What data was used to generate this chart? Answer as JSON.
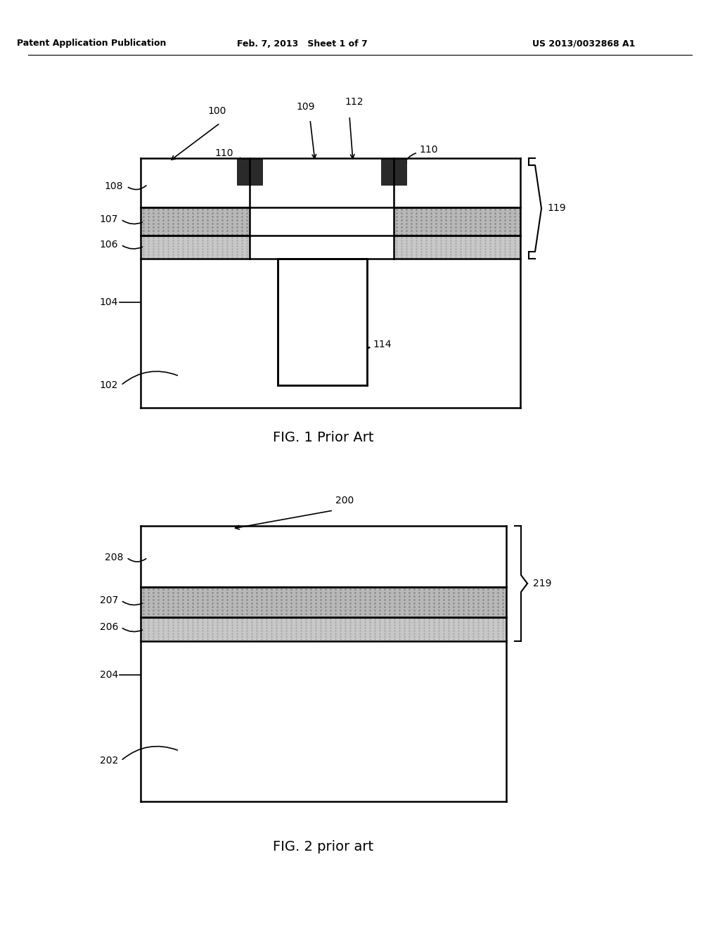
{
  "bg_color": "#ffffff",
  "line_color": "#000000",
  "header_left": "Patent Application Publication",
  "header_mid": "Feb. 7, 2013   Sheet 1 of 7",
  "header_right": "US 2013/0032868 A1",
  "fig1_caption": "FIG. 1 Prior Art",
  "fig2_caption": "FIG. 2 prior art",
  "stipple_color1": "#b8b8b8",
  "stipple_color2": "#d0d0d0",
  "dark_layer_color": "#2a2a2a",
  "white_fill": "#ffffff",
  "light_stipple": "#c8c8c8"
}
